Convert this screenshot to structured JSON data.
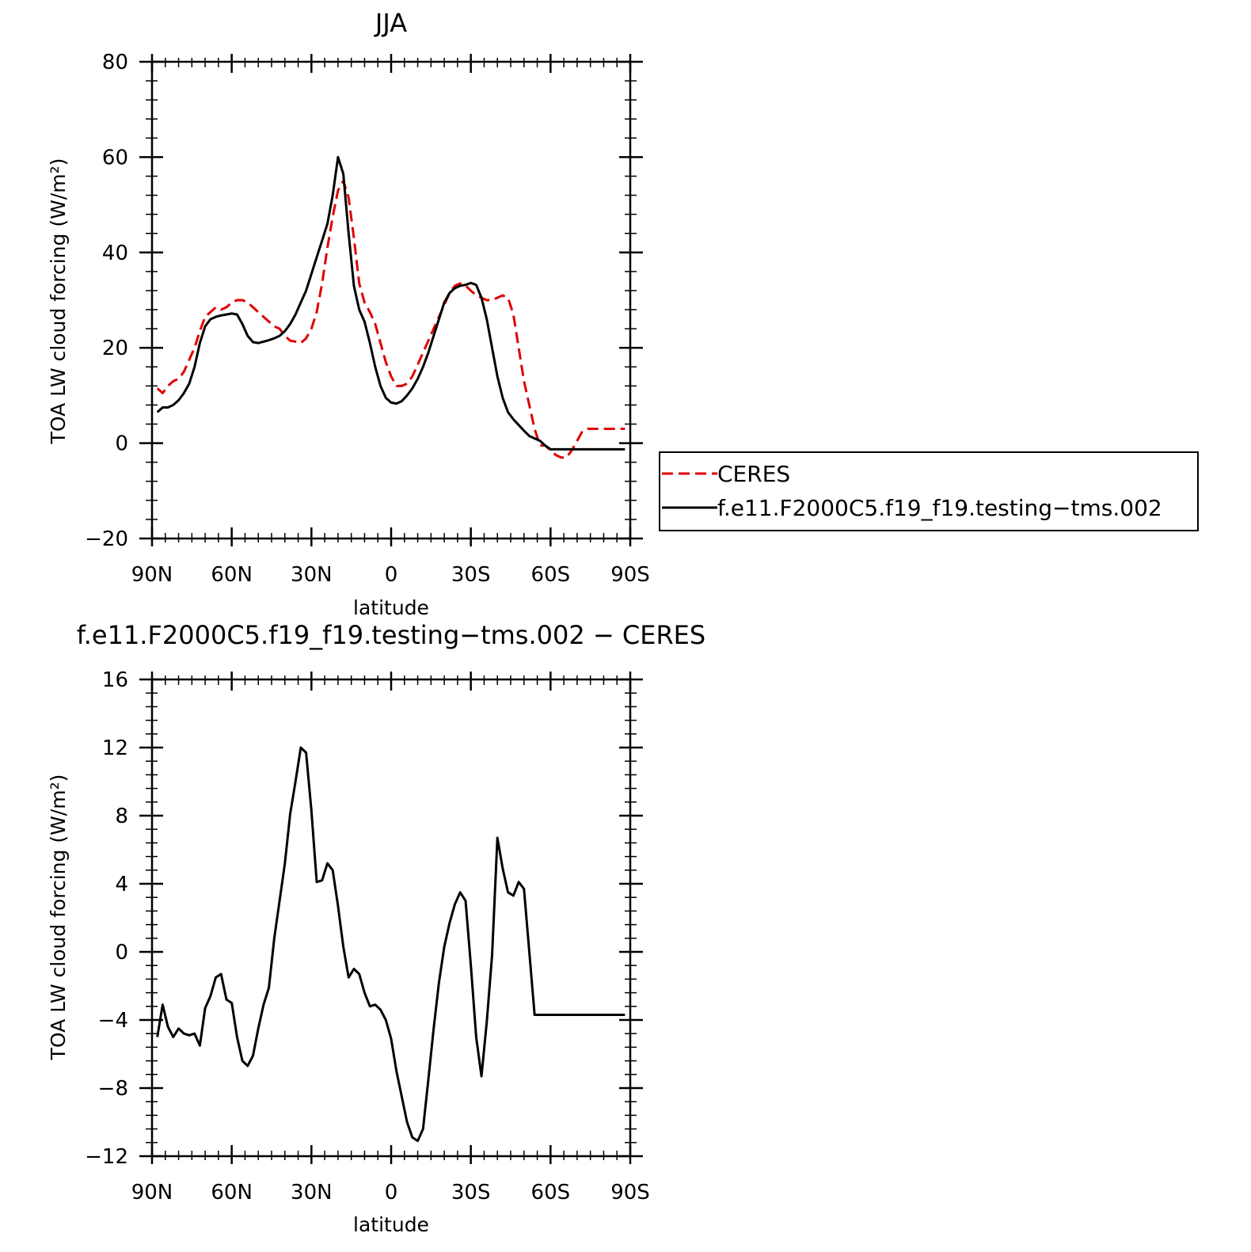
{
  "chart_data": [
    {
      "type": "line",
      "title": "JJA",
      "xlabel": "latitude",
      "ylabel": "TOA LW cloud forcing (W/m²)",
      "xlim": [
        90,
        -90
      ],
      "ylim": [
        -20,
        80
      ],
      "x_ticks": [
        90,
        60,
        30,
        0,
        -30,
        -60,
        -90
      ],
      "x_tick_labels": [
        "90N",
        "60N",
        "30N",
        "0",
        "30S",
        "60S",
        "90S"
      ],
      "y_ticks": [
        -20,
        0,
        20,
        40,
        60,
        80
      ],
      "y_tick_labels": [
        "−20",
        "0",
        "20",
        "40",
        "60",
        "80"
      ],
      "grid": false,
      "legend_position": "right",
      "series": [
        {
          "name": "CERES",
          "color": "#e00000",
          "dash": "dashed",
          "x": [
            88,
            86,
            84,
            82,
            80,
            78,
            76,
            74,
            72,
            70,
            68,
            66,
            64,
            62,
            60,
            58,
            56,
            54,
            52,
            50,
            48,
            46,
            44,
            42,
            40,
            38,
            36,
            34,
            32,
            30,
            28,
            26,
            24,
            22,
            20,
            18,
            16,
            14,
            12,
            10,
            8,
            6,
            4,
            2,
            0,
            -2,
            -4,
            -6,
            -8,
            -10,
            -12,
            -14,
            -16,
            -18,
            -20,
            -22,
            -24,
            -26,
            -28,
            -30,
            -32,
            -34,
            -36,
            -38,
            -40,
            -42,
            -44,
            -46,
            -48,
            -50,
            -52,
            -54,
            -56,
            -58,
            -60,
            -62,
            -64,
            -66,
            -68,
            -70,
            -72,
            -74,
            -76,
            -78,
            -80,
            -82,
            -84,
            -86,
            -88
          ],
          "y": [
            11.5,
            10.5,
            12,
            13,
            13.5,
            15,
            17.5,
            20,
            23.5,
            26.5,
            27.5,
            28.5,
            28,
            28.5,
            29.5,
            30,
            30,
            29.5,
            28.5,
            27.5,
            26.5,
            25.5,
            24.5,
            24,
            22.5,
            21.5,
            21.3,
            21,
            22,
            24,
            27.5,
            33.5,
            41,
            47.5,
            53,
            55,
            51.5,
            43,
            33.5,
            29.5,
            27.5,
            25,
            21,
            17,
            14,
            12,
            12,
            12.5,
            14,
            16.5,
            19,
            21.5,
            24,
            26.5,
            29,
            31.5,
            33,
            33.5,
            33,
            32,
            31,
            30.5,
            30,
            30,
            30.5,
            31,
            30.5,
            27,
            20,
            13,
            8,
            3,
            -0.5,
            -0.5,
            -1.5,
            -2.5,
            -3,
            -3,
            -1.5,
            0.5,
            2.5,
            3,
            3,
            3,
            3,
            3,
            3,
            3,
            3
          ]
        },
        {
          "name": "f.e11.F2000C5.f19_f19.testing−tms.002",
          "color": "#000000",
          "dash": "solid",
          "x": [
            88,
            86,
            84,
            82,
            80,
            78,
            76,
            74,
            72,
            70,
            68,
            66,
            64,
            62,
            60,
            58,
            56,
            54,
            52,
            50,
            48,
            46,
            44,
            42,
            40,
            38,
            36,
            34,
            32,
            30,
            28,
            26,
            24,
            22,
            20,
            18,
            16,
            14,
            12,
            10,
            8,
            6,
            4,
            2,
            0,
            -2,
            -4,
            -6,
            -8,
            -10,
            -12,
            -14,
            -16,
            -18,
            -20,
            -22,
            -24,
            -26,
            -28,
            -30,
            -32,
            -34,
            -36,
            -38,
            -40,
            -42,
            -44,
            -46,
            -48,
            -50,
            -52,
            -54,
            -56,
            -58,
            -60,
            -62,
            -64,
            -66,
            -68,
            -70,
            -72,
            -74,
            -76,
            -78,
            -80,
            -82,
            -84,
            -86,
            -88
          ],
          "y": [
            6.5,
            7.5,
            7.5,
            8,
            9,
            10.5,
            12.5,
            16,
            21,
            24.5,
            26,
            26.5,
            26.8,
            27,
            27.2,
            27,
            25,
            22.5,
            21.2,
            21,
            21.3,
            21.6,
            22,
            22.5,
            23.5,
            25,
            27,
            29.5,
            32,
            35.5,
            39,
            42.5,
            46,
            52,
            60,
            56.5,
            44,
            33,
            28,
            25.5,
            21,
            16,
            12,
            9.5,
            8.5,
            8.3,
            8.8,
            10,
            11.5,
            13.5,
            16,
            19,
            22.5,
            26,
            29.5,
            31.5,
            32.5,
            33,
            33.2,
            33.6,
            33.2,
            30.5,
            26,
            20,
            14,
            9.5,
            6.5,
            5,
            3.8,
            2.6,
            1.5,
            1,
            0.5,
            -0.5,
            -1.3,
            -1.3,
            -1.3,
            -1.3,
            -1.3,
            -1.3,
            -1.3,
            -1.3,
            -1.3,
            -1.3,
            -1.3,
            -1.3,
            -1.3,
            -1.3,
            -1.3
          ]
        }
      ]
    },
    {
      "type": "line",
      "title": "f.e11.F2000C5.f19_f19.testing−tms.002 − CERES",
      "xlabel": "latitude",
      "ylabel": "TOA LW cloud forcing (W/m²)",
      "xlim": [
        90,
        -90
      ],
      "ylim": [
        -12,
        16
      ],
      "x_ticks": [
        90,
        60,
        30,
        0,
        -30,
        -60,
        -90
      ],
      "x_tick_labels": [
        "90N",
        "60N",
        "30N",
        "0",
        "30S",
        "60S",
        "90S"
      ],
      "y_ticks": [
        -12,
        -8,
        -4,
        0,
        4,
        8,
        12,
        16
      ],
      "y_tick_labels": [
        "−12",
        "−8",
        "−4",
        "0",
        "4",
        "8",
        "12",
        "16"
      ],
      "grid": false,
      "series": [
        {
          "color": "#000000",
          "dash": "solid",
          "x": [
            88,
            86,
            84,
            82,
            80,
            78,
            76,
            74,
            72,
            70,
            68,
            66,
            64,
            62,
            60,
            58,
            56,
            54,
            52,
            50,
            48,
            46,
            44,
            42,
            40,
            38,
            36,
            34,
            32,
            30,
            28,
            26,
            24,
            22,
            20,
            18,
            16,
            14,
            12,
            10,
            8,
            6,
            4,
            2,
            0,
            -2,
            -4,
            -6,
            -8,
            -10,
            -12,
            -14,
            -16,
            -18,
            -20,
            -22,
            -24,
            -26,
            -28,
            -30,
            -32,
            -34,
            -36,
            -38,
            -40,
            -42,
            -44,
            -46,
            -48,
            -50,
            -52,
            -54,
            -56,
            -58,
            -60,
            -62,
            -64,
            -66,
            -68,
            -70,
            -72,
            -74,
            -76,
            -78,
            -80,
            -82,
            -84,
            -86,
            -88
          ],
          "y": [
            -5,
            -3.1,
            -4.4,
            -5,
            -4.5,
            -4.8,
            -4.9,
            -4.8,
            -5.5,
            -3.3,
            -2.6,
            -1.5,
            -1.3,
            -2.8,
            -3.0,
            -5.0,
            -6.4,
            -6.7,
            -6.1,
            -4.5,
            -3.1,
            -2.1,
            0.8,
            3.0,
            5.2,
            8.1,
            10.0,
            12.0,
            11.7,
            8.3,
            4.1,
            4.2,
            5.2,
            4.8,
            2.7,
            0.3,
            -1.5,
            -1.0,
            -1.3,
            -2.4,
            -3.2,
            -3.1,
            -3.4,
            -4.0,
            -5.1,
            -7.0,
            -8.5,
            -10.0,
            -10.9,
            -11.1,
            -10.4,
            -7.5,
            -4.5,
            -1.8,
            0.3,
            1.7,
            2.8,
            3.5,
            3.0,
            -0.8,
            -5.0,
            -7.3,
            -4.1,
            -0.2,
            6.7,
            4.9,
            3.5,
            3.3,
            4.1,
            3.7,
            0,
            -3.7,
            -3.7,
            -3.7,
            -3.7,
            -3.7,
            -3.7,
            -3.7,
            -3.7,
            -3.7,
            -3.7,
            -3.7,
            -3.7,
            -3.7,
            -3.7,
            -3.7,
            -3.7,
            -3.7,
            -3.7
          ]
        }
      ]
    }
  ]
}
